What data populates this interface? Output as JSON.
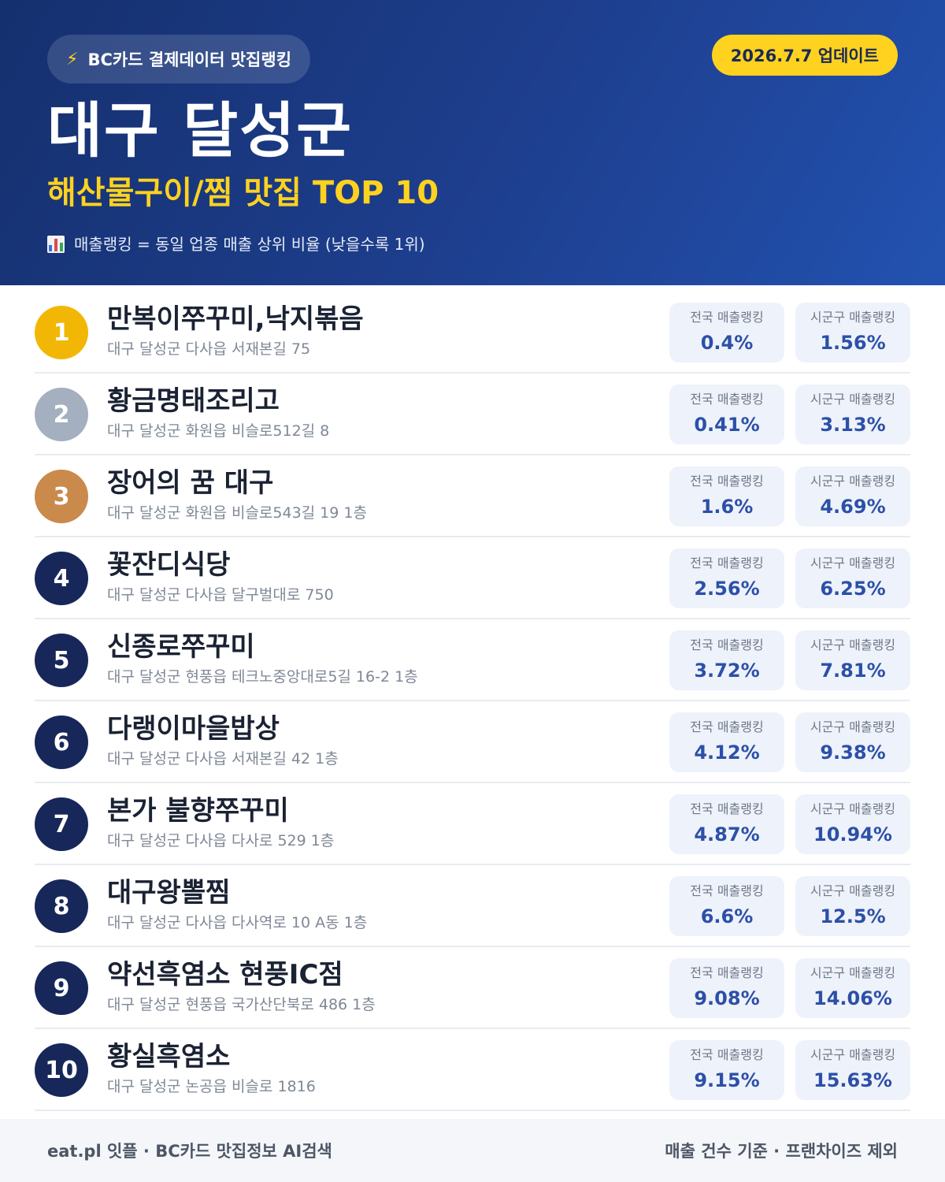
{
  "header": {
    "source_label": "BC카드 결제데이터 맛집랭킹",
    "update_label": "2026.7.7 업데이트",
    "title": "대구 달성군",
    "subtitle": "해산물구이/찜 맛집 TOP 10",
    "note": "매출랭킹 = 동일 업종 매출 상위 비율 (낮을수록 1위)",
    "icons": [
      "lightning-icon",
      "bar-chart-icon"
    ],
    "accent_color": "#ffd21f"
  },
  "columns": {
    "national": "전국 매출랭킹",
    "local": "시군구 매출랭킹"
  },
  "restaurants": [
    {
      "rank": "1",
      "name": "만복이쭈꾸미,낙지볶음",
      "address": "대구 달성군 다사읍 서재본길 75",
      "national": "0.4%",
      "local": "1.56%"
    },
    {
      "rank": "2",
      "name": "황금명태조리고",
      "address": "대구 달성군 화원읍 비슬로512길 8",
      "national": "0.41%",
      "local": "3.13%"
    },
    {
      "rank": "3",
      "name": "장어의 꿈 대구",
      "address": "대구 달성군 화원읍 비슬로543길 19 1층",
      "national": "1.6%",
      "local": "4.69%"
    },
    {
      "rank": "4",
      "name": "꽃잔디식당",
      "address": "대구 달성군 다사읍 달구벌대로 750",
      "national": "2.56%",
      "local": "6.25%"
    },
    {
      "rank": "5",
      "name": "신종로쭈꾸미",
      "address": "대구 달성군 현풍읍 테크노중앙대로5길 16-2 1층",
      "national": "3.72%",
      "local": "7.81%"
    },
    {
      "rank": "6",
      "name": "다랭이마을밥상",
      "address": "대구 달성군 다사읍 서재본길 42 1층",
      "national": "4.12%",
      "local": "9.38%"
    },
    {
      "rank": "7",
      "name": "본가 불향쭈꾸미",
      "address": "대구 달성군 다사읍 다사로 529 1층",
      "national": "4.87%",
      "local": "10.94%"
    },
    {
      "rank": "8",
      "name": "대구왕뽈찜",
      "address": "대구 달성군 다사읍 다사역로 10 A동 1층",
      "national": "6.6%",
      "local": "12.5%"
    },
    {
      "rank": "9",
      "name": "약선흑염소 현풍IC점",
      "address": "대구 달성군 현풍읍 국가산단북로 486 1층",
      "national": "9.08%",
      "local": "14.06%"
    },
    {
      "rank": "10",
      "name": "황실흑염소",
      "address": "대구 달성군 논공읍 비슬로 1816",
      "national": "9.15%",
      "local": "15.63%"
    }
  ],
  "footer": {
    "left": "eat.pl 잇플 · BC카드 맛집정보 AI검색",
    "right": "매출 건수 기준 · 프랜차이즈 제외"
  }
}
